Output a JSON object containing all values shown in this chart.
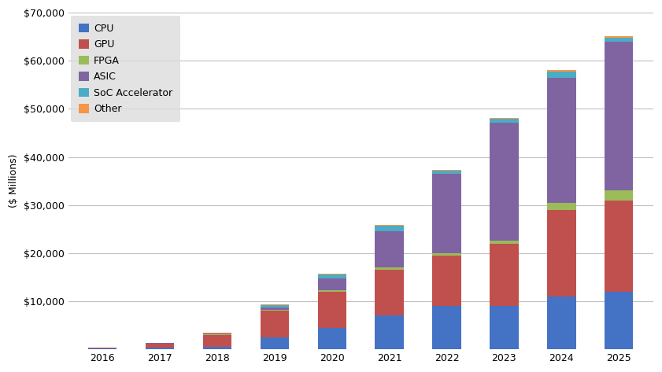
{
  "years": [
    2016,
    2017,
    2018,
    2019,
    2020,
    2021,
    2022,
    2023,
    2024,
    2025
  ],
  "CPU": [
    100,
    300,
    500,
    2500,
    4500,
    7000,
    9000,
    9000,
    11000,
    12000
  ],
  "GPU": [
    200,
    800,
    2500,
    5500,
    7500,
    9500,
    10500,
    13000,
    18000,
    19000
  ],
  "FPGA": [
    30,
    80,
    100,
    200,
    300,
    500,
    500,
    600,
    1500,
    2000
  ],
  "ASIC": [
    30,
    80,
    100,
    500,
    2500,
    7500,
    16500,
    24500,
    26000,
    31000
  ],
  "SoC_Accelerator": [
    30,
    80,
    150,
    500,
    800,
    1200,
    600,
    800,
    1200,
    800
  ],
  "Other": [
    10,
    30,
    50,
    100,
    100,
    150,
    150,
    200,
    300,
    300
  ],
  "colors": {
    "CPU": "#4472C4",
    "GPU": "#C0504D",
    "FPGA": "#9BBB59",
    "ASIC": "#8064A2",
    "SoC_Accelerator": "#4BACC6",
    "Other": "#F79646"
  },
  "ylabel": "($ Millions)",
  "ylim": [
    0,
    70000
  ],
  "yticks": [
    10000,
    20000,
    30000,
    40000,
    50000,
    60000,
    70000
  ],
  "ytick_labels": [
    "$10,000",
    "$20,000",
    "$30,000",
    "$40,000",
    "$50,000",
    "$60,000",
    "$70,000"
  ],
  "background_color": "#FFFFFF",
  "plot_bg_color": "#FFFFFF",
  "grid_color": "#C0C0C0",
  "legend_labels": [
    "CPU",
    "GPU",
    "FPGA",
    "ASIC",
    "SoC Accelerator",
    "Other"
  ],
  "legend_keys": [
    "CPU",
    "GPU",
    "FPGA",
    "ASIC",
    "SoC_Accelerator",
    "Other"
  ],
  "legend_bg": "#DCDCDC",
  "bar_width": 0.5
}
